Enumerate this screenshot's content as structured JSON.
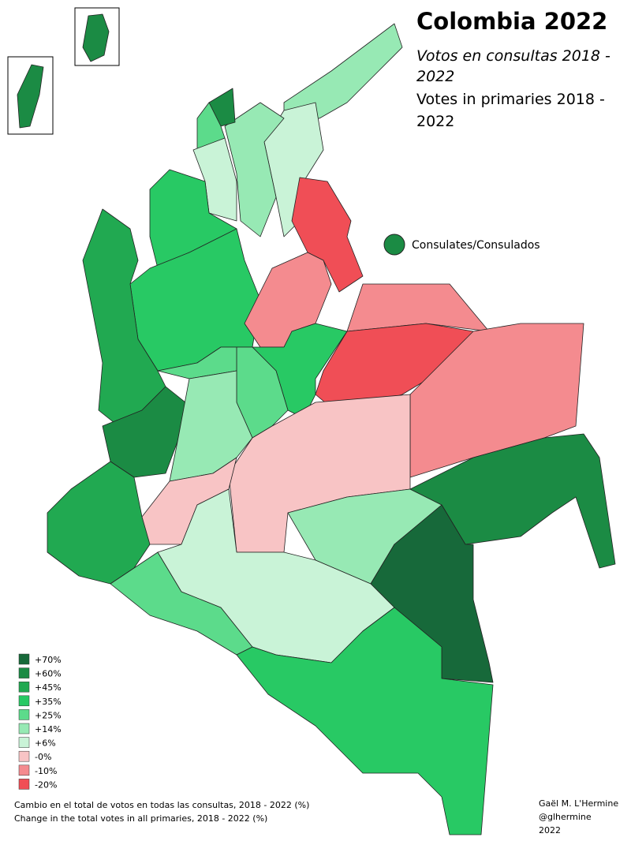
{
  "title": "Colombia 2022",
  "subtitle_es": "Votos en consultas 2018 - 2022",
  "subtitle_en": "Votes in primaries 2018 - 2022",
  "consulates_label": "Consulates/Consulados",
  "legend": [
    {
      "label": "+70%",
      "color": "#17693a"
    },
    {
      "label": "+60%",
      "color": "#1b8b44"
    },
    {
      "label": "+45%",
      "color": "#21a951"
    },
    {
      "label": "+35%",
      "color": "#28c964"
    },
    {
      "label": "+25%",
      "color": "#5cdb8b"
    },
    {
      "label": "+14%",
      "color": "#97e9b4"
    },
    {
      "label": "+6%",
      "color": "#c9f3d7"
    },
    {
      "label": "-0%",
      "color": "#f8c4c5"
    },
    {
      "label": "-10%",
      "color": "#f48b8f"
    },
    {
      "label": "-20%",
      "color": "#f04e56"
    }
  ],
  "note": [
    "Cambio en el total de votos en todas las consultas, 2018 - 2022 (%)",
    "Change in the total votes in all primaries, 2018 - 2022 (%)"
  ],
  "credit": [
    "Gaël M. L'Hermine",
    "@glhermine",
    "2022"
  ]
}
